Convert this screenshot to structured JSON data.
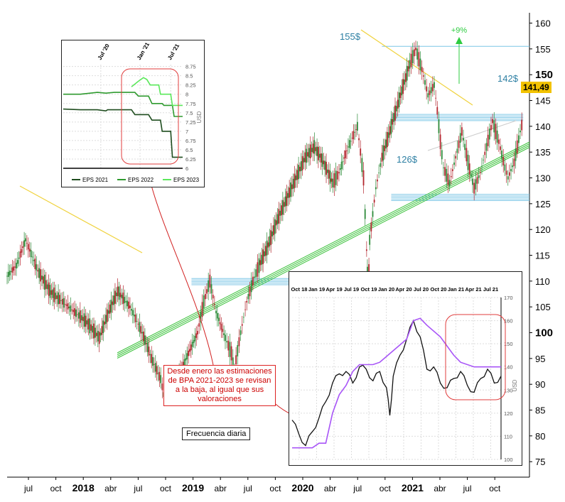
{
  "chart_data": [
    {
      "type": "line",
      "name_hint": "",
      "x_labels": [
        "jul",
        "oct",
        "2018",
        "abr",
        "jul",
        "oct",
        "2019",
        "abr",
        "jul",
        "oct",
        "2020",
        "abr",
        "jul",
        "oct",
        "2021",
        "abr",
        "jul",
        "oct"
      ],
      "bold_x_labels": [
        "2018",
        "2019",
        "2020",
        "2021"
      ],
      "y_ticks": [
        75,
        80,
        85,
        90,
        95,
        100,
        105,
        110,
        115,
        120,
        125,
        130,
        135,
        140,
        145,
        150,
        155,
        160
      ],
      "bold_y_ticks": [
        100,
        150
      ],
      "ylim": [
        72,
        162
      ],
      "last_price": "141,49",
      "annotations": {
        "top_label": "155$",
        "upside_label": "+9%",
        "resistance_label": "142$",
        "support_label": "126$"
      },
      "series": [
        {
          "values": [
            [
              0,
              111
            ],
            [
              3,
              113
            ],
            [
              6,
              118
            ],
            [
              10,
              112
            ],
            [
              14,
              108
            ],
            [
              18,
              106
            ],
            [
              22,
              104
            ],
            [
              26,
              102
            ],
            [
              30,
              99
            ],
            [
              33,
              104
            ],
            [
              36,
              108
            ],
            [
              40,
              105
            ],
            [
              44,
              100
            ],
            [
              47,
              95
            ],
            [
              50,
              91
            ],
            [
              51,
              88
            ],
            [
              53,
              90
            ],
            [
              56,
              92
            ],
            [
              59,
              96
            ],
            [
              62,
              100
            ],
            [
              64,
              106
            ],
            [
              66,
              110
            ],
            [
              68,
              104
            ],
            [
              71,
              99
            ],
            [
              73,
              96
            ],
            [
              74,
              93
            ],
            [
              76,
              100
            ],
            [
              78,
              106
            ],
            [
              80,
              110
            ],
            [
              82,
              113
            ],
            [
              85,
              117
            ],
            [
              88,
              122
            ],
            [
              91,
              126
            ],
            [
              94,
              130
            ],
            [
              97,
              134
            ],
            [
              100,
              136
            ],
            [
              103,
              133
            ],
            [
              106,
              129
            ],
            [
              108,
              131
            ],
            [
              111,
              136
            ],
            [
              114,
              140
            ],
            [
              116,
              130
            ],
            [
              117,
              116
            ],
            [
              117.5,
              107
            ],
            [
              118,
              118
            ],
            [
              120,
              128
            ],
            [
              122,
              134
            ],
            [
              125,
              140
            ],
            [
              128,
              146
            ],
            [
              131,
              152
            ],
            [
              133,
              155
            ],
            [
              135,
              151
            ],
            [
              137,
              146
            ],
            [
              139,
              148
            ],
            [
              140,
              143
            ],
            [
              141,
              137
            ],
            [
              142,
              132
            ],
            [
              144,
              129
            ],
            [
              146,
              134
            ],
            [
              148,
              139
            ],
            [
              150,
              133
            ],
            [
              152,
              128
            ],
            [
              154,
              131
            ],
            [
              156,
              136
            ],
            [
              158,
              141
            ],
            [
              160,
              137
            ],
            [
              162,
              132
            ],
            [
              163,
              130
            ],
            [
              165,
              133
            ],
            [
              167,
              139
            ],
            [
              168,
              141.49
            ]
          ]
        }
      ]
    },
    {
      "type": "line",
      "x_labels": [
        "Jul '20",
        "Jan '21",
        "Jul '21"
      ],
      "y_ticks": [
        "6",
        "6.25",
        "6.5",
        "6.75",
        "7",
        "7.25",
        "7.5",
        "7.75",
        "8",
        "8.25",
        "8.5",
        "8.75"
      ],
      "ylim": [
        6,
        8.8
      ],
      "y_unit": "USD",
      "series": [
        {
          "name": "EPS 2021",
          "color": "#1f4d1f",
          "values": [
            [
              0,
              7.6
            ],
            [
              10,
              7.58
            ],
            [
              20,
              7.58
            ],
            [
              25,
              7.55
            ],
            [
              26,
              7.58
            ],
            [
              40,
              7.58
            ],
            [
              42,
              7.45
            ],
            [
              50,
              7.45
            ],
            [
              52,
              7.3
            ],
            [
              57,
              7.3
            ],
            [
              58,
              7.0
            ],
            [
              63,
              7.0
            ],
            [
              64,
              6.3
            ],
            [
              70,
              6.3
            ]
          ]
        },
        {
          "name": "EPS 2022",
          "color": "#2e9a2e",
          "values": [
            [
              0,
              8.0
            ],
            [
              10,
              8.0
            ],
            [
              20,
              8.05
            ],
            [
              25,
              8.03
            ],
            [
              30,
              8.05
            ],
            [
              42,
              8.05
            ],
            [
              44,
              7.95
            ],
            [
              50,
              7.95
            ],
            [
              52,
              7.75
            ],
            [
              58,
              7.75
            ],
            [
              59,
              7.7
            ],
            [
              64,
              7.7
            ],
            [
              65,
              7.4
            ],
            [
              70,
              7.4
            ]
          ]
        },
        {
          "name": "EPS 2023",
          "color": "#5be85b",
          "values": [
            [
              40,
              8.2
            ],
            [
              44,
              8.35
            ],
            [
              47,
              8.45
            ],
            [
              49,
              8.4
            ],
            [
              51,
              8.25
            ],
            [
              56,
              8.25
            ],
            [
              57,
              8.0
            ],
            [
              63,
              8.0
            ],
            [
              64,
              7.7
            ],
            [
              70,
              7.7
            ]
          ]
        }
      ]
    },
    {
      "type": "line",
      "x_labels": [
        "Oct 18",
        "Jan 19",
        "Apr 19",
        "Jul 19",
        "Oct 19",
        "Jan 20",
        "Apr 20",
        "Jul 20",
        "Oct 20",
        "Jan 21",
        "Apr 21",
        "Jul 21"
      ],
      "y_ticks": [
        "100",
        "110",
        "120",
        "130",
        "140",
        "150",
        "160",
        "170"
      ],
      "ylim": [
        100,
        170
      ],
      "y_unit": "USD",
      "series": [
        {
          "color": "#111111",
          "values": [
            [
              0,
              117
            ],
            [
              2,
              111
            ],
            [
              4,
              106
            ],
            [
              6,
              112
            ],
            [
              8,
              118
            ],
            [
              10,
              125
            ],
            [
              12,
              133
            ],
            [
              14,
              137
            ],
            [
              16,
              138
            ],
            [
              18,
              133
            ],
            [
              20,
              140
            ],
            [
              22,
              139
            ],
            [
              24,
              134
            ],
            [
              26,
              138
            ],
            [
              28,
              131
            ],
            [
              29,
              119
            ],
            [
              30,
              136
            ],
            [
              32,
              145
            ],
            [
              34,
              152
            ],
            [
              36,
              160
            ],
            [
              38,
              153
            ],
            [
              40,
              139
            ],
            [
              42,
              140
            ],
            [
              44,
              133
            ],
            [
              46,
              131
            ],
            [
              48,
              135
            ],
            [
              50,
              138
            ],
            [
              52,
              132
            ],
            [
              54,
              129
            ],
            [
              56,
              135
            ],
            [
              58,
              139
            ],
            [
              60,
              133
            ],
            [
              62,
              136
            ]
          ]
        },
        {
          "color": "#a855f7",
          "values": [
            [
              0,
              105
            ],
            [
              6,
              105
            ],
            [
              8,
              107
            ],
            [
              10,
              107
            ],
            [
              12,
              120
            ],
            [
              14,
              128
            ],
            [
              16,
              132
            ],
            [
              18,
              138
            ],
            [
              20,
              141
            ],
            [
              24,
              141
            ],
            [
              26,
              142
            ],
            [
              30,
              147
            ],
            [
              34,
              152
            ],
            [
              36,
              160
            ],
            [
              38,
              161
            ],
            [
              40,
              158
            ],
            [
              44,
              153
            ],
            [
              48,
              145
            ],
            [
              50,
              142
            ],
            [
              54,
              140
            ],
            [
              58,
              140
            ],
            [
              62,
              140
            ]
          ]
        }
      ]
    }
  ],
  "annotation_text": "Desde enero las estimaciones de BPA 2021-2023 se revisan a la baja, al igual que sus valoraciones",
  "frequency_label": "Frecuencia diaria",
  "colors": {
    "up": "#2e8b3a",
    "down": "#b3262e",
    "trend": "#f0d23c",
    "support": "#3cc23c",
    "zone": "#7cc6e6",
    "annotation": "#d22222"
  }
}
